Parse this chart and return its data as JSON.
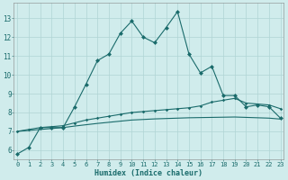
{
  "xlabel": "Humidex (Indice chaleur)",
  "background_color": "#d0ecec",
  "grid_color": "#b0d4d4",
  "line_color": "#1a6b6b",
  "x_ticks": [
    0,
    1,
    2,
    3,
    4,
    5,
    6,
    7,
    8,
    9,
    10,
    11,
    12,
    13,
    14,
    15,
    16,
    17,
    18,
    19,
    20,
    21,
    22,
    23
  ],
  "y_ticks": [
    6,
    7,
    8,
    9,
    10,
    11,
    12,
    13
  ],
  "ylim": [
    5.5,
    13.8
  ],
  "xlim": [
    -0.3,
    23.3
  ],
  "line1_x": [
    0,
    1,
    2,
    3,
    4,
    5,
    6,
    7,
    8,
    9,
    10,
    11,
    12,
    13,
    14,
    15,
    16,
    17,
    18,
    19,
    20,
    21,
    22,
    23
  ],
  "line1_y": [
    5.8,
    6.15,
    7.2,
    7.2,
    7.2,
    8.3,
    9.5,
    10.75,
    11.1,
    12.2,
    12.85,
    12.0,
    11.7,
    12.5,
    13.35,
    11.1,
    10.1,
    10.45,
    8.9,
    8.9,
    8.3,
    8.4,
    8.3,
    7.7
  ],
  "line2_x": [
    0,
    1,
    2,
    3,
    4,
    5,
    6,
    7,
    8,
    9,
    10,
    11,
    12,
    13,
    14,
    15,
    16,
    17,
    18,
    19,
    20,
    21,
    22,
    23
  ],
  "line2_y": [
    7.0,
    7.1,
    7.2,
    7.25,
    7.3,
    7.45,
    7.6,
    7.7,
    7.8,
    7.9,
    8.0,
    8.05,
    8.1,
    8.15,
    8.2,
    8.25,
    8.35,
    8.55,
    8.65,
    8.75,
    8.5,
    8.45,
    8.4,
    8.2
  ],
  "line3_x": [
    0,
    1,
    2,
    3,
    4,
    5,
    6,
    7,
    8,
    9,
    10,
    11,
    12,
    13,
    14,
    15,
    16,
    17,
    18,
    19,
    20,
    21,
    22,
    23
  ],
  "line3_y": [
    7.0,
    7.05,
    7.1,
    7.15,
    7.2,
    7.28,
    7.35,
    7.42,
    7.48,
    7.54,
    7.6,
    7.63,
    7.66,
    7.68,
    7.7,
    7.72,
    7.73,
    7.74,
    7.75,
    7.76,
    7.74,
    7.72,
    7.7,
    7.65
  ]
}
